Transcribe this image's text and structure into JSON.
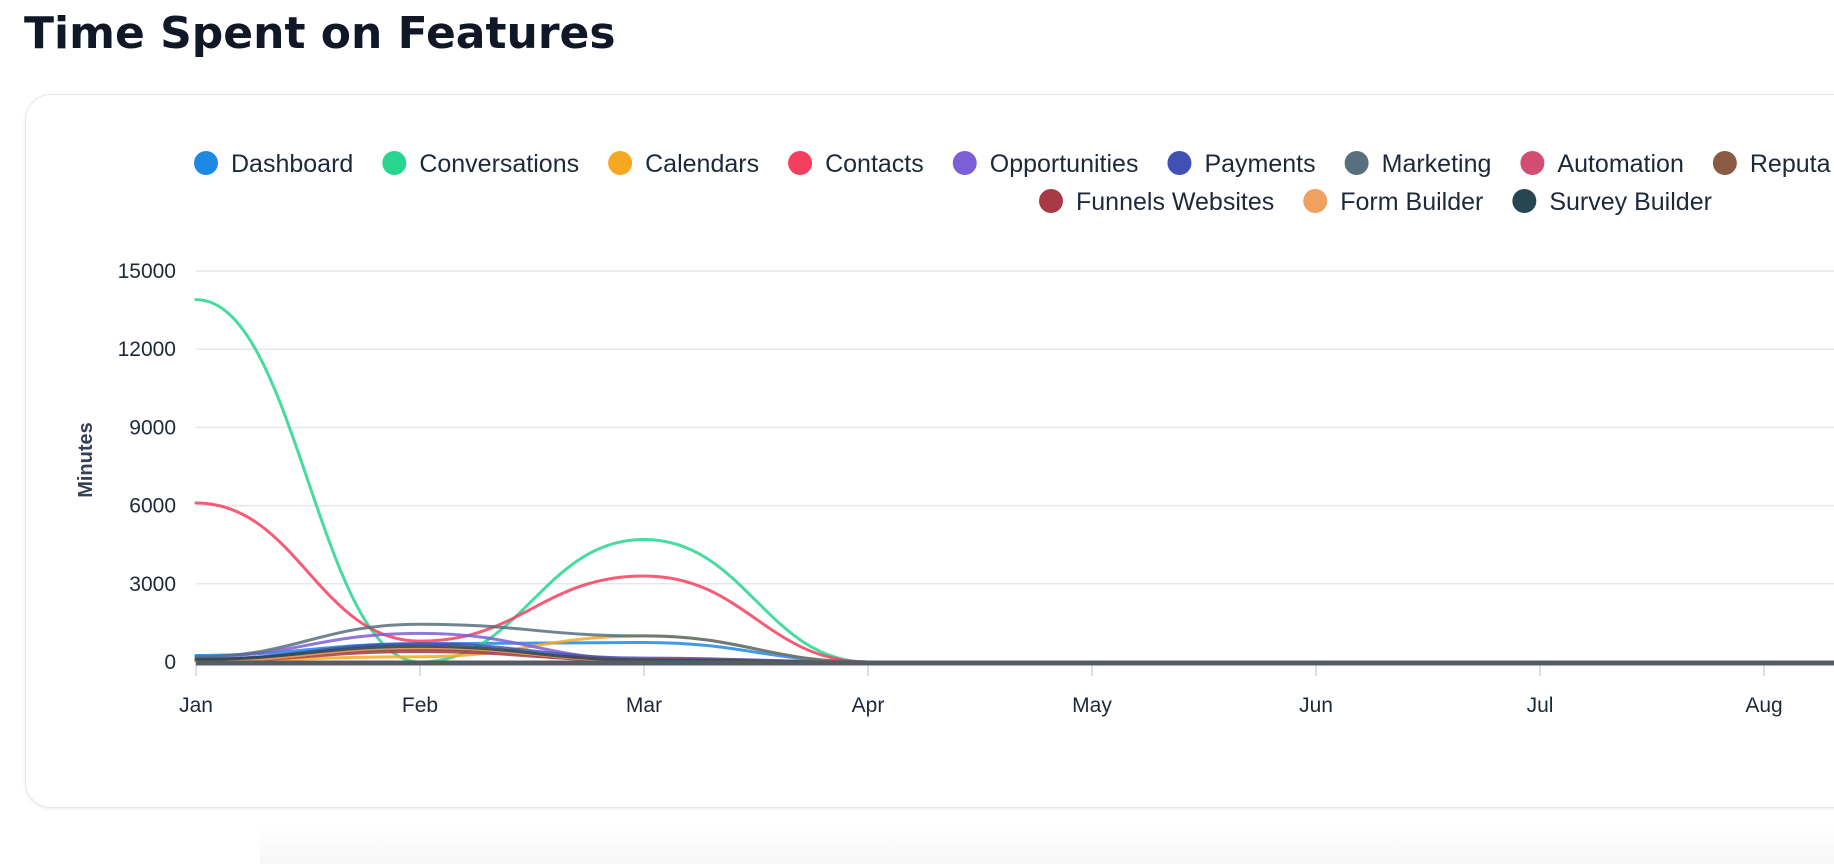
{
  "page": {
    "title": "Time Spent on Features"
  },
  "chart_data": {
    "type": "line",
    "title": "",
    "xlabel": "",
    "ylabel": "Minutes",
    "categories": [
      "Jan",
      "Feb",
      "Mar",
      "Apr",
      "May",
      "Jun",
      "Jul",
      "Aug"
    ],
    "ylim": [
      0,
      15000
    ],
    "yticks": [
      "0",
      "3000",
      "6000",
      "9000",
      "12000",
      "15000"
    ],
    "grid": true,
    "legend_position": "top",
    "legend_rows": [
      [
        "Dashboard",
        "Conversations",
        "Calendars",
        "Contacts",
        "Opportunities",
        "Payments",
        "Marketing",
        "Automation",
        "Reputa"
      ],
      [
        "Funnels Websites",
        "Form Builder",
        "Survey Builder"
      ]
    ],
    "series": [
      {
        "name": "Dashboard",
        "color": "#1e88e5",
        "values": [
          250,
          700,
          750,
          0,
          0,
          0,
          0,
          0
        ]
      },
      {
        "name": "Conversations",
        "color": "#26d68f",
        "values": [
          13900,
          0,
          4700,
          0,
          0,
          0,
          0,
          0
        ]
      },
      {
        "name": "Calendars",
        "color": "#f6a821",
        "values": [
          50,
          200,
          1000,
          0,
          0,
          0,
          0,
          0
        ]
      },
      {
        "name": "Contacts",
        "color": "#f43f5e",
        "values": [
          6100,
          800,
          3300,
          0,
          0,
          0,
          0,
          0
        ]
      },
      {
        "name": "Opportunities",
        "color": "#7c5fd8",
        "values": [
          200,
          1100,
          100,
          0,
          0,
          0,
          0,
          0
        ]
      },
      {
        "name": "Payments",
        "color": "#3f51b5",
        "values": [
          100,
          700,
          150,
          0,
          0,
          0,
          0,
          0
        ]
      },
      {
        "name": "Marketing",
        "color": "#58707d",
        "values": [
          200,
          1450,
          1000,
          0,
          0,
          0,
          0,
          0
        ]
      },
      {
        "name": "Automation",
        "color": "#d14d72",
        "values": [
          50,
          500,
          100,
          0,
          0,
          0,
          0,
          0
        ]
      },
      {
        "name": "Reputa",
        "color": "#8a5a45",
        "values": [
          50,
          500,
          50,
          0,
          0,
          0,
          0,
          0
        ]
      },
      {
        "name": "Funnels Websites",
        "color": "#a83a46",
        "values": [
          30,
          400,
          50,
          0,
          0,
          0,
          0,
          0
        ]
      },
      {
        "name": "Form Builder",
        "color": "#f1a15f",
        "values": [
          20,
          550,
          50,
          0,
          0,
          0,
          0,
          0
        ]
      },
      {
        "name": "Survey Builder",
        "color": "#264653",
        "values": [
          100,
          600,
          80,
          0,
          0,
          0,
          0,
          0
        ]
      }
    ]
  }
}
